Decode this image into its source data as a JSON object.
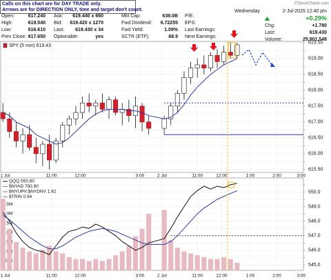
{
  "note": [
    "Calls on this chart are for DAY TRADE only.",
    "Arrows are for DIRECTION ONLY, time and target don't count."
  ],
  "watermark": "©StockCharts.com",
  "quote": {
    "rows": [
      [
        [
          "Open:",
          "617.240"
        ],
        [
          "Ask:",
          "619.440 x 660"
        ],
        [
          "Mkt Cap:",
          "638.0B"
        ],
        [
          "P/E:"
        ]
      ],
      [
        [
          "High:",
          "619.540"
        ],
        [
          "Bid:",
          "619.420 x 1270"
        ],
        [
          "Fwd Dividend:",
          "6.72255"
        ],
        [
          "EPS:"
        ]
      ],
      [
        [
          "Low:",
          "616.610"
        ],
        [
          "Last:",
          "619.430 x 34"
        ],
        [
          "Fwd Yield:",
          "1.09%"
        ],
        [
          "Last Earnings:"
        ]
      ],
      [
        [
          "Prev Close:",
          "617.650"
        ],
        [
          "Optionable:",
          "yes"
        ],
        [
          "SCTR (ETF):",
          "68.9"
        ],
        [
          "Next Earnings:"
        ]
      ]
    ],
    "day": "Wednesday",
    "date": "2-Jul-2025 12:40 pm",
    "change_pct": "+0.29%",
    "right": [
      [
        "Chg:",
        "+1.780"
      ],
      [
        "Last:",
        "619.430"
      ],
      [
        "Volume:",
        "25,901,548"
      ]
    ]
  },
  "chart_data": [
    {
      "type": "candlestick",
      "legend": "SPY (5 min) 619.43",
      "grid": true,
      "xlim": [
        0,
        137
      ],
      "xticks": [
        {
          "value": 2,
          "label": "1 Jul"
        },
        {
          "value": 23,
          "label": "11:00"
        },
        {
          "value": 36,
          "label": "12:00"
        },
        {
          "value": 63,
          "label": "3:00"
        },
        {
          "value": 73,
          "label": "2 Jul"
        },
        {
          "value": 89,
          "label": "11:00"
        },
        {
          "value": 100,
          "label": "12:00"
        },
        {
          "value": 113,
          "label": "1:00"
        },
        {
          "value": 125,
          "label": "2:00"
        },
        {
          "value": 136,
          "label": "3:00"
        }
      ],
      "ylim": [
        615.41,
        619.54
      ],
      "yticks": [
        {
          "value": 615.5,
          "label": "615.50"
        },
        615.75,
        {
          "value": 616,
          "label": "616.00"
        },
        616.25,
        {
          "value": 616.5,
          "label": "616.50"
        },
        616.75,
        {
          "value": 617,
          "label": "617.00"
        },
        617.25,
        {
          "value": 617.5,
          "label": "617.50"
        },
        617.75,
        {
          "value": 618,
          "label": "618.00"
        },
        618.25,
        {
          "value": 618.5,
          "label": "618.50"
        },
        618.75,
        {
          "value": 619,
          "label": "619.00"
        },
        619.25,
        {
          "value": 619.5,
          "label": "619.50"
        }
      ],
      "x": [
        1,
        4,
        7,
        10,
        13,
        16,
        19,
        22,
        25,
        28,
        31,
        34,
        37,
        40,
        43,
        46,
        49,
        52,
        55,
        58,
        61,
        64,
        67,
        74,
        77,
        80,
        83,
        86,
        89,
        92,
        95,
        98,
        101,
        104,
        107
      ],
      "open": [
        617.3,
        617.1,
        616.7,
        616.4,
        616.6,
        616.2,
        616.0,
        616.3,
        615.8,
        616.4,
        616.9,
        617.1,
        617.3,
        617.6,
        617.5,
        617.6,
        617.4,
        617.7,
        617.3,
        617.4,
        617.2,
        617.5,
        617.0,
        616.8,
        617.1,
        617.5,
        617.9,
        618.4,
        618.7,
        618.8,
        618.7,
        619.1,
        618.9,
        619.2,
        619.1
      ],
      "high": [
        617.6,
        617.3,
        617.0,
        616.8,
        616.9,
        616.5,
        616.4,
        616.6,
        616.5,
        617.0,
        617.2,
        617.5,
        617.8,
        617.9,
        617.7,
        617.9,
        617.8,
        617.8,
        617.6,
        617.7,
        617.8,
        617.6,
        617.2,
        617.2,
        617.6,
        618.0,
        618.6,
        618.9,
        619.0,
        619.1,
        619.2,
        619.3,
        619.4,
        619.5,
        619.5
      ],
      "low": [
        617.0,
        616.5,
        616.2,
        616.0,
        616.1,
        615.7,
        615.6,
        615.5,
        615.7,
        616.2,
        616.6,
        616.9,
        617.1,
        617.3,
        617.2,
        617.3,
        617.1,
        617.2,
        616.9,
        617.0,
        616.8,
        616.7,
        616.6,
        616.6,
        616.9,
        617.3,
        617.7,
        618.2,
        618.4,
        618.5,
        618.6,
        618.7,
        618.8,
        619.0,
        619.0
      ],
      "close": [
        617.1,
        616.7,
        616.4,
        616.6,
        616.2,
        616.0,
        616.3,
        615.8,
        616.4,
        616.9,
        617.1,
        617.3,
        617.6,
        617.5,
        617.6,
        617.4,
        617.7,
        617.3,
        617.4,
        617.2,
        617.5,
        617.0,
        616.8,
        617.1,
        617.5,
        617.9,
        618.4,
        618.7,
        618.8,
        618.7,
        619.1,
        618.9,
        619.2,
        619.1,
        619.43
      ],
      "series": [
        {
          "color": "#2b3a9e",
          "values": [
            617.3,
            617.2,
            617.0,
            616.9,
            616.8,
            616.6,
            616.5,
            616.4,
            616.3,
            616.35,
            616.5,
            616.7,
            616.9,
            617.1,
            617.25,
            617.35,
            617.4,
            617.4,
            617.4,
            617.35,
            617.35,
            617.3,
            617.2,
            617.1,
            617.15,
            617.3,
            617.55,
            617.85,
            618.1,
            618.3,
            618.5,
            618.65,
            618.8,
            618.9,
            619.0
          ]
        }
      ],
      "levels": [
        {
          "value": 617.6,
          "color": "#2b3a9e",
          "dash": true
        },
        {
          "value": 616.6,
          "color": "#2b3a9e",
          "dash": false
        }
      ]
    },
    {
      "type": "line",
      "legend": [
        "QQQ 550.60",
        "$NYAD 792.80",
        "$NYUPV:$NYDNV 1.92",
        "$TRIN 0.94"
      ],
      "grid": true,
      "xlim": [
        0,
        137
      ],
      "xticks": [
        {
          "value": 2,
          "label": "1 Jul"
        },
        {
          "value": 23,
          "label": "11:00"
        },
        {
          "value": 36,
          "label": "12:00"
        },
        {
          "value": 63,
          "label": "3:00"
        },
        {
          "value": 73,
          "label": "2 Jul"
        },
        {
          "value": 89,
          "label": "11:00"
        },
        {
          "value": 100,
          "label": "12:00"
        },
        {
          "value": 113,
          "label": "1:00"
        },
        {
          "value": 125,
          "label": "2:00"
        },
        {
          "value": 136,
          "label": "3:00"
        }
      ],
      "ylim": [
        544.62,
        550.97
      ],
      "yticks": [
        {
          "value": 545,
          "label": "545.0"
        },
        545.5,
        {
          "value": 546,
          "label": "546.0"
        },
        546.5,
        {
          "value": 547,
          "label": "547.0"
        },
        547.5,
        {
          "value": 548,
          "label": "548.0"
        },
        548.5,
        {
          "value": 549,
          "label": "549.0"
        },
        549.5,
        {
          "value": 550,
          "label": "550.0"
        },
        550.5
      ],
      "y2lim": [
        0,
        4900000
      ],
      "y2ticks": [
        {
          "value": 500000,
          "label": "500K"
        },
        {
          "value": 1000000,
          "label": "1.0M"
        },
        {
          "value": 1500000,
          "label": "1.5M"
        },
        {
          "value": 2000000,
          "label": "2.0M"
        },
        {
          "value": 2500000,
          "label": "2.5M"
        },
        {
          "value": 3000000,
          "label": "3.0M"
        },
        {
          "value": 3500000,
          "label": "3.5M"
        }
      ],
      "x": [
        1,
        4,
        7,
        10,
        13,
        16,
        19,
        22,
        25,
        28,
        31,
        34,
        37,
        40,
        43,
        46,
        49,
        52,
        55,
        58,
        61,
        64,
        67,
        74,
        77,
        80,
        83,
        86,
        89,
        92,
        95,
        98,
        101,
        104,
        107
      ],
      "series": [
        {
          "type": "bar",
          "axis": "y2",
          "color": "#e7b9c0",
          "values": [
            3800000,
            2200000,
            1500000,
            1200000,
            1000000,
            900000,
            1100000,
            1300000,
            1000000,
            900000,
            700000,
            600000,
            600000,
            500000,
            600000,
            500000,
            600000,
            800000,
            1000000,
            1300000,
            1800000,
            2200000,
            3000000,
            3200000,
            1600000,
            1200000,
            1000000,
            900000,
            800000,
            700000,
            600000,
            600000,
            700000,
            600000,
            400000
          ]
        },
        {
          "type": "line",
          "color": "#111111",
          "values": [
            548.6,
            548.0,
            547.2,
            546.6,
            546.2,
            546.0,
            545.9,
            545.7,
            546.3,
            546.9,
            547.3,
            547.4,
            547.6,
            547.5,
            547.8,
            547.6,
            547.3,
            547.0,
            546.6,
            546.3,
            546.0,
            546.2,
            546.5,
            546.8,
            547.5,
            548.3,
            549.0,
            549.7,
            550.1,
            550.4,
            550.2,
            550.4,
            550.3,
            550.5,
            550.6
          ]
        },
        {
          "type": "line",
          "color": "#2b3a9e",
          "values": [
            548.4,
            548.1,
            547.7,
            547.3,
            546.9,
            546.6,
            546.3,
            546.1,
            546.1,
            546.3,
            546.6,
            546.9,
            547.1,
            547.3,
            547.4,
            547.5,
            547.4,
            547.3,
            547.1,
            546.9,
            546.7,
            546.5,
            546.4,
            546.4,
            546.6,
            547.0,
            547.5,
            548.0,
            548.5,
            548.9,
            549.2,
            549.5,
            549.7,
            549.9,
            550.1
          ]
        }
      ],
      "levels": [
        {
          "value": 547,
          "color": "#222222",
          "dash": true
        }
      ]
    }
  ]
}
